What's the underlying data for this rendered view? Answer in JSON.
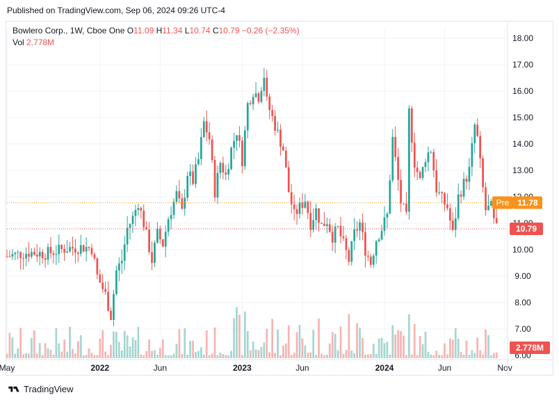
{
  "header": {
    "published": "Published on TradingView.com, Sep 06, 2024 09:26 UTC-4"
  },
  "legend": {
    "symbol": "Bowlero Corp., 1W, Cboe One",
    "open_label": "O",
    "open": "11.09",
    "high_label": "H",
    "high": "11.34",
    "low_label": "L",
    "low": "10.74",
    "close_label": "C",
    "close": "10.79",
    "change": "−0.26 (−2.35%)",
    "vol_label": "Vol",
    "vol": "2.778M"
  },
  "footer": {
    "brand": "TradingView"
  },
  "colors": {
    "up": "#26a69a",
    "down": "#ef5350",
    "up_vol": "#a5d6d1",
    "down_vol": "#f5b5b3",
    "pre": "#f7931a",
    "grid": "#f0f3fa",
    "axis_text": "#131722"
  },
  "chart_data": {
    "type": "candlestick",
    "ylim": [
      6,
      18.5
    ],
    "y_ticks": [
      "6.00",
      "7.00",
      "8.00",
      "9.00",
      "10.00",
      "11.00",
      "12.00",
      "13.00",
      "14.00",
      "15.00",
      "16.00",
      "17.00",
      "18.00"
    ],
    "x_ticks": [
      {
        "label": "May",
        "week": 0,
        "bold": false
      },
      {
        "label": "2022",
        "week": 34,
        "bold": true
      },
      {
        "label": "Jun",
        "week": 56,
        "bold": false
      },
      {
        "label": "2023",
        "week": 86,
        "bold": true
      },
      {
        "label": "Jun",
        "week": 108,
        "bold": false
      },
      {
        "label": "2024",
        "week": 138,
        "bold": true
      },
      {
        "label": "Jun",
        "week": 160,
        "bold": false
      },
      {
        "label": "Nov",
        "week": 182,
        "bold": false
      }
    ],
    "last_price": {
      "label": "10.79",
      "value": 10.79
    },
    "pre_market": {
      "tag": "Pre",
      "label": "11.78",
      "value": 11.78
    },
    "volume_badge": "2.778M",
    "close_path": [
      [
        0,
        9.75
      ],
      [
        8,
        9.9
      ],
      [
        14,
        9.85
      ],
      [
        22,
        10.05
      ],
      [
        28,
        10.1
      ],
      [
        31,
        10.05
      ],
      [
        33,
        9.0
      ],
      [
        36,
        8.3
      ],
      [
        38,
        7.5
      ],
      [
        40,
        9.2
      ],
      [
        42,
        9.6
      ],
      [
        44,
        10.8
      ],
      [
        46,
        11.2
      ],
      [
        48,
        11.8
      ],
      [
        50,
        11.0
      ],
      [
        53,
        9.6
      ],
      [
        55,
        10.6
      ],
      [
        57,
        10.2
      ],
      [
        59,
        11.2
      ],
      [
        62,
        12.1
      ],
      [
        64,
        11.4
      ],
      [
        66,
        12.9
      ],
      [
        68,
        12.6
      ],
      [
        70,
        13.4
      ],
      [
        72,
        14.8
      ],
      [
        74,
        14.2
      ],
      [
        76,
        12.2
      ],
      [
        78,
        13.3
      ],
      [
        80,
        12.8
      ],
      [
        82,
        13.8
      ],
      [
        84,
        14.5
      ],
      [
        86,
        13.4
      ],
      [
        88,
        15.5
      ],
      [
        90,
        16.0
      ],
      [
        92,
        15.8
      ],
      [
        94,
        16.6
      ],
      [
        95,
        15.6
      ],
      [
        97,
        15.0
      ],
      [
        99,
        14.4
      ],
      [
        101,
        13.8
      ],
      [
        103,
        12.2
      ],
      [
        105,
        11.3
      ],
      [
        107,
        11.6
      ],
      [
        109,
        11.9
      ],
      [
        111,
        11.0
      ],
      [
        113,
        11.5
      ],
      [
        115,
        10.9
      ],
      [
        117,
        11.1
      ],
      [
        119,
        10.5
      ],
      [
        121,
        10.8
      ],
      [
        123,
        10.2
      ],
      [
        125,
        9.6
      ],
      [
        127,
        10.6
      ],
      [
        129,
        11.0
      ],
      [
        131,
        10.0
      ],
      [
        133,
        9.5
      ],
      [
        135,
        10.4
      ],
      [
        137,
        10.8
      ],
      [
        139,
        11.3
      ],
      [
        141,
        14.2
      ],
      [
        142,
        13.4
      ],
      [
        144,
        11.8
      ],
      [
        146,
        11.2
      ],
      [
        147,
        15.2
      ],
      [
        149,
        13.3
      ],
      [
        151,
        12.6
      ],
      [
        153,
        13.5
      ],
      [
        155,
        13.8
      ],
      [
        157,
        12.3
      ],
      [
        159,
        11.9
      ],
      [
        161,
        11.6
      ],
      [
        163,
        10.6
      ],
      [
        165,
        12.0
      ],
      [
        167,
        12.5
      ],
      [
        169,
        13.0
      ],
      [
        171,
        14.7
      ],
      [
        172,
        14.2
      ],
      [
        174,
        12.3
      ],
      [
        175,
        11.5
      ],
      [
        177,
        11.6
      ],
      [
        178,
        11.05
      ],
      [
        179,
        10.79
      ]
    ]
  }
}
